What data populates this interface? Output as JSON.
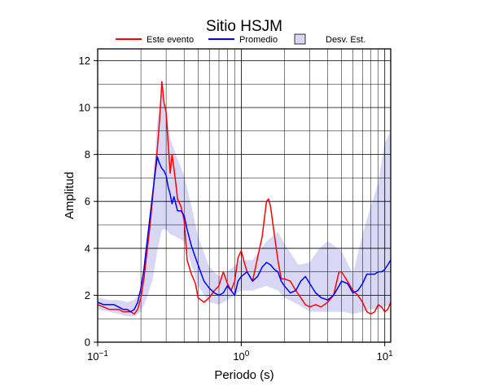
{
  "chart_data": {
    "type": "line",
    "title": "Sitio HSJM",
    "xlabel": "Periodo (s)",
    "ylabel": "Amplitud",
    "x_scale": "log",
    "xlim": [
      0.1,
      11
    ],
    "ylim": [
      0,
      12.5
    ],
    "grid": true,
    "legend_placement": "top",
    "x_ticks": [
      {
        "value": 0.1,
        "base": "10",
        "exp": "−1"
      },
      {
        "value": 1,
        "label": "10",
        "suffix": "0"
      },
      {
        "value": 10,
        "base": "10",
        "exp": "1"
      }
    ],
    "y_ticks": [
      0,
      2,
      4,
      6,
      8,
      10,
      12
    ],
    "legend": [
      {
        "label": "Este evento",
        "kind": "line",
        "color": "#ff0000"
      },
      {
        "label": "Promedio",
        "kind": "line",
        "color": "#0000ff"
      },
      {
        "label": "Desv. Est.",
        "kind": "area",
        "color": "#d8d8f6"
      }
    ],
    "series": [
      {
        "name": "Este evento",
        "color": "#ff0000",
        "x": [
          0.1,
          0.11,
          0.12,
          0.13,
          0.14,
          0.15,
          0.16,
          0.17,
          0.18,
          0.19,
          0.2,
          0.21,
          0.22,
          0.23,
          0.24,
          0.25,
          0.26,
          0.27,
          0.28,
          0.29,
          0.3,
          0.31,
          0.32,
          0.33,
          0.34,
          0.35,
          0.36,
          0.38,
          0.4,
          0.42,
          0.45,
          0.48,
          0.5,
          0.55,
          0.6,
          0.65,
          0.7,
          0.75,
          0.8,
          0.85,
          0.9,
          0.95,
          1.0,
          1.05,
          1.1,
          1.2,
          1.3,
          1.4,
          1.5,
          1.55,
          1.6,
          1.7,
          1.8,
          1.9,
          2.0,
          2.2,
          2.4,
          2.6,
          2.8,
          3.0,
          3.3,
          3.6,
          4.0,
          4.4,
          4.8,
          5.0,
          5.5,
          6.0,
          6.5,
          7.0,
          7.5,
          8.0,
          8.5,
          9.0,
          9.5,
          10.0,
          10.5,
          11.0
        ],
        "values": [
          1.6,
          1.5,
          1.4,
          1.4,
          1.4,
          1.3,
          1.3,
          1.3,
          1.2,
          1.4,
          1.9,
          2.7,
          3.8,
          4.8,
          6.0,
          7.2,
          8.2,
          9.5,
          11.1,
          10.2,
          9.8,
          8.4,
          7.2,
          8.0,
          7.4,
          6.8,
          6.1,
          5.8,
          5.2,
          3.5,
          2.9,
          2.5,
          1.9,
          1.7,
          1.9,
          2.2,
          2.4,
          3.0,
          2.5,
          2.2,
          2.6,
          3.6,
          3.9,
          3.4,
          3.0,
          2.6,
          3.6,
          4.5,
          6.0,
          6.1,
          5.8,
          4.6,
          3.5,
          2.7,
          2.7,
          2.6,
          2.2,
          1.9,
          1.6,
          1.5,
          1.6,
          1.5,
          1.7,
          2.0,
          3.0,
          3.0,
          2.6,
          2.2,
          2.0,
          1.7,
          1.3,
          1.2,
          1.3,
          1.6,
          1.5,
          1.3,
          1.4,
          1.7
        ]
      },
      {
        "name": "Promedio",
        "color": "#0000ff",
        "x": [
          0.1,
          0.11,
          0.12,
          0.13,
          0.14,
          0.15,
          0.16,
          0.17,
          0.18,
          0.19,
          0.2,
          0.21,
          0.22,
          0.23,
          0.24,
          0.25,
          0.26,
          0.27,
          0.28,
          0.29,
          0.3,
          0.31,
          0.32,
          0.33,
          0.34,
          0.35,
          0.36,
          0.38,
          0.4,
          0.42,
          0.45,
          0.48,
          0.5,
          0.55,
          0.6,
          0.65,
          0.7,
          0.75,
          0.8,
          0.85,
          0.9,
          0.95,
          1.0,
          1.1,
          1.2,
          1.3,
          1.4,
          1.5,
          1.6,
          1.7,
          1.8,
          1.9,
          2.0,
          2.2,
          2.4,
          2.6,
          2.8,
          3.0,
          3.3,
          3.6,
          4.0,
          4.4,
          4.8,
          5.0,
          5.5,
          6.0,
          6.5,
          7.0,
          7.5,
          8.0,
          8.5,
          9.0,
          9.5,
          10.0,
          10.5,
          11.0
        ],
        "values": [
          1.7,
          1.6,
          1.6,
          1.6,
          1.5,
          1.4,
          1.4,
          1.3,
          1.4,
          1.7,
          2.3,
          3.1,
          4.2,
          5.2,
          6.2,
          7.1,
          7.9,
          7.6,
          7.4,
          7.3,
          7.1,
          6.6,
          6.3,
          5.9,
          6.2,
          5.9,
          5.6,
          5.6,
          5.4,
          4.8,
          4.1,
          3.6,
          3.3,
          2.6,
          2.3,
          2.1,
          2.0,
          2.1,
          2.4,
          2.2,
          2.0,
          2.6,
          2.8,
          3.0,
          2.6,
          2.8,
          3.2,
          3.4,
          3.3,
          3.1,
          3.0,
          2.6,
          2.4,
          2.1,
          2.2,
          2.6,
          2.8,
          2.5,
          2.1,
          1.9,
          1.8,
          2.0,
          2.4,
          2.6,
          2.5,
          2.1,
          2.2,
          2.5,
          2.9,
          2.9,
          2.9,
          3.0,
          3.0,
          3.1,
          3.3,
          3.5
        ]
      }
    ],
    "std_band": {
      "name": "Desv. Est.",
      "color": "#d8d8f6",
      "x": [
        0.1,
        0.12,
        0.14,
        0.16,
        0.18,
        0.2,
        0.22,
        0.24,
        0.26,
        0.28,
        0.3,
        0.32,
        0.35,
        0.4,
        0.45,
        0.5,
        0.6,
        0.7,
        0.8,
        1.0,
        1.2,
        1.5,
        1.8,
        2.0,
        2.5,
        3.0,
        3.5,
        4.0,
        5.0,
        6.0,
        7.0,
        8.0,
        9.0,
        10.0,
        11.0
      ],
      "upper": [
        1.9,
        1.8,
        1.8,
        1.7,
        1.8,
        2.2,
        3.6,
        6.3,
        9.4,
        10.6,
        9.9,
        8.7,
        8.0,
        7.1,
        5.8,
        4.5,
        3.2,
        2.8,
        3.0,
        3.5,
        3.5,
        4.3,
        4.7,
        4.2,
        3.3,
        3.4,
        4.0,
        4.3,
        3.9,
        2.9,
        4.6,
        5.8,
        6.8,
        8.5,
        9.0
      ],
      "lower": [
        1.4,
        1.3,
        1.2,
        1.1,
        1.1,
        1.3,
        1.9,
        2.6,
        3.9,
        4.8,
        4.8,
        4.6,
        4.5,
        4.3,
        3.3,
        2.4,
        1.7,
        1.6,
        1.8,
        2.2,
        2.2,
        2.4,
        2.2,
        1.9,
        1.6,
        1.3,
        1.3,
        1.3,
        1.3,
        1.2,
        1.3,
        1.4,
        1.4,
        1.5,
        1.6
      ]
    }
  }
}
